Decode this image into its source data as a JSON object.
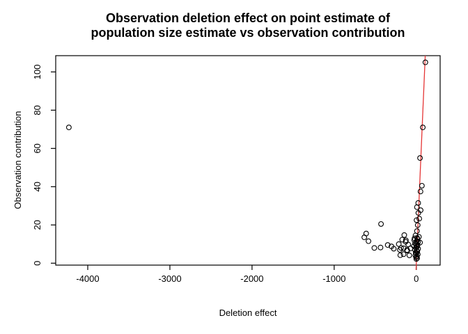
{
  "chart_data": {
    "type": "scatter",
    "title_line1": "Observation deletion effect on point estimate of",
    "title_line2": "population size estimate vs observation contribution",
    "xlabel": "Deletion effect",
    "ylabel": "Observation contribution",
    "xlim": [
      -4390,
      290
    ],
    "ylim": [
      -1,
      108.5
    ],
    "x_ticks": [
      -4000,
      -3000,
      -2000,
      -1000,
      0
    ],
    "y_ticks": [
      0,
      20,
      40,
      60,
      80,
      100
    ],
    "grid": false,
    "legend": "none",
    "point_style": {
      "shape": "open-circle",
      "color": "#000000",
      "radius": 3.4
    },
    "line": {
      "kind": "identity-abline",
      "slope": 1,
      "intercept": 0,
      "color": "#e53535"
    },
    "points": [
      [
        -4230,
        71
      ],
      [
        -633,
        13.5
      ],
      [
        -610,
        15.5
      ],
      [
        -582,
        11.5
      ],
      [
        -511,
        8.0
      ],
      [
        -436,
        8.2
      ],
      [
        -430,
        20.5
      ],
      [
        -348,
        9.5
      ],
      [
        -303,
        8.8
      ],
      [
        -275,
        7.6
      ],
      [
        -214,
        10.0
      ],
      [
        -201,
        7.0
      ],
      [
        -195,
        4.2
      ],
      [
        -186,
        8.0
      ],
      [
        -172,
        12.3
      ],
      [
        -155,
        4.7
      ],
      [
        -153,
        7.8
      ],
      [
        -147,
        14.7
      ],
      [
        -130,
        11.2
      ],
      [
        -127,
        12.0
      ],
      [
        -113,
        6.9
      ],
      [
        -110,
        6.6
      ],
      [
        -99,
        9.8
      ],
      [
        -85,
        4.1
      ],
      [
        -70,
        7.7
      ],
      [
        110,
        105
      ],
      [
        79,
        71
      ],
      [
        45,
        55
      ],
      [
        68,
        40.5
      ],
      [
        51,
        37.5
      ],
      [
        23,
        31.5
      ],
      [
        8,
        29.3
      ],
      [
        53,
        27.7
      ],
      [
        25,
        26.3
      ],
      [
        36,
        23.3
      ],
      [
        3,
        22.5
      ],
      [
        17,
        19.9
      ],
      [
        8,
        16.8
      ],
      [
        31,
        13.8
      ],
      [
        45,
        10.8
      ],
      [
        -10,
        14.5
      ],
      [
        10,
        13.2
      ],
      [
        -25,
        12.1
      ],
      [
        5,
        11.6
      ],
      [
        20,
        11.0
      ],
      [
        -15,
        10.4
      ],
      [
        0,
        10.0
      ],
      [
        15,
        9.5
      ],
      [
        -30,
        9.0
      ],
      [
        8,
        8.6
      ],
      [
        -5,
        8.1
      ],
      [
        22,
        7.5
      ],
      [
        -18,
        7.1
      ],
      [
        5,
        6.6
      ],
      [
        12,
        6.1
      ],
      [
        -8,
        5.6
      ],
      [
        0,
        5.1
      ],
      [
        18,
        4.6
      ],
      [
        -12,
        4.1
      ],
      [
        6,
        3.6
      ],
      [
        -3,
        3.1
      ],
      [
        10,
        2.6
      ],
      [
        0,
        2.2
      ],
      [
        -22,
        13.0
      ],
      [
        15,
        12.5
      ]
    ]
  }
}
